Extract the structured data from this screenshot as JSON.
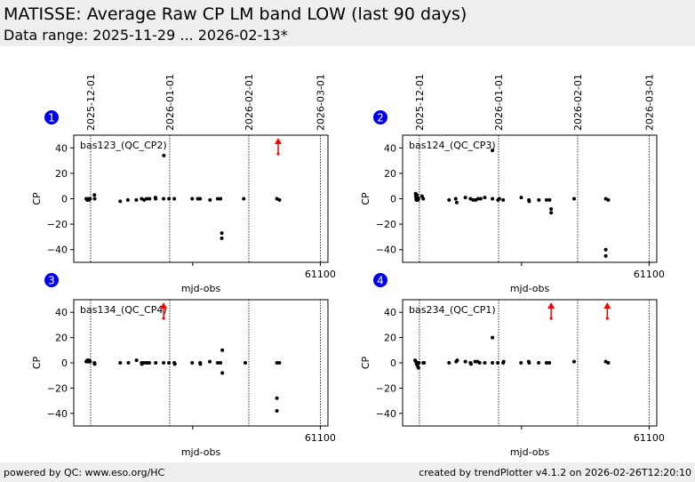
{
  "header": {
    "title": "MATISSE: Average Raw CP LM band LOW (last 90 days)",
    "subtitle": "Data range: 2025-11-29 ... 2026-02-13*"
  },
  "footer": {
    "left": "powered by QC: www.eso.org/HC",
    "right": "created by trendPlotter v4.1.2 on 2026-02-26T12:20:10"
  },
  "colors": {
    "badge": "#0000ee",
    "points": "#000000",
    "outlier_arrow": "#ff0000",
    "background_band": "#eeeeee"
  },
  "chart_data": [
    {
      "type": "scatter",
      "panel": 1,
      "label": "bas123_(QC_CP2)",
      "xlabel": "mjd-obs",
      "ylabel": "CP",
      "xlim": [
        61003.4,
        61103
      ],
      "ylim": [
        -50,
        50
      ],
      "yticks": [
        -40,
        -20,
        0,
        20,
        40
      ],
      "xticks": [
        61050,
        61100
      ],
      "xtick_labels": [
        "",
        "61100"
      ],
      "date_markers": [
        {
          "mjd": 61010,
          "label": "2025-12-01"
        },
        {
          "mjd": 61041,
          "label": "2026-01-01"
        },
        {
          "mjd": 61072,
          "label": "2026-02-01"
        },
        {
          "mjd": 61100,
          "label": "2026-03-01"
        }
      ],
      "points": [
        [
          61008.3,
          0
        ],
        [
          61008.7,
          -1
        ],
        [
          61009.0,
          0
        ],
        [
          61009.4,
          -1
        ],
        [
          61009.8,
          0
        ],
        [
          61011.5,
          3
        ],
        [
          61011.6,
          0
        ],
        [
          61021.6,
          -2
        ],
        [
          61024.6,
          -1
        ],
        [
          61027.9,
          -1
        ],
        [
          61030.0,
          0
        ],
        [
          61031.0,
          -1
        ],
        [
          61032.0,
          0
        ],
        [
          61033.1,
          0
        ],
        [
          61035.4,
          1
        ],
        [
          61035.5,
          0
        ],
        [
          61038.7,
          34
        ],
        [
          61038.6,
          0
        ],
        [
          61040.7,
          0
        ],
        [
          61042.8,
          0
        ],
        [
          61049.8,
          0
        ],
        [
          61052.9,
          0
        ],
        [
          61056.8,
          -1
        ],
        [
          61059.8,
          0
        ],
        [
          61060.9,
          0
        ],
        [
          61052.0,
          0
        ],
        [
          61061.4,
          -27
        ],
        [
          61061.4,
          -31
        ],
        [
          61070.0,
          0
        ],
        [
          61083.0,
          0
        ],
        [
          61084.0,
          -1
        ]
      ],
      "outliers_above": [
        61083.5
      ]
    },
    {
      "type": "scatter",
      "panel": 2,
      "label": "bas124_(QC_CP3)",
      "xlabel": "mjd-obs",
      "ylabel": "CP",
      "xlim": [
        61003.4,
        61103
      ],
      "ylim": [
        -50,
        50
      ],
      "yticks": [
        -40,
        -20,
        0,
        20,
        40
      ],
      "xticks": [
        61050,
        61100
      ],
      "xtick_labels": [
        "",
        "61100"
      ],
      "date_markers": [
        {
          "mjd": 61010,
          "label": "2025-12-01"
        },
        {
          "mjd": 61041,
          "label": "2026-01-01"
        },
        {
          "mjd": 61072,
          "label": "2026-02-01"
        },
        {
          "mjd": 61100,
          "label": "2026-03-01"
        }
      ],
      "points": [
        [
          61008.5,
          4
        ],
        [
          61008.6,
          2
        ],
        [
          61008.7,
          0
        ],
        [
          61008.8,
          -1
        ],
        [
          61009.0,
          3
        ],
        [
          61009.2,
          1
        ],
        [
          61009.4,
          -1
        ],
        [
          61009.6,
          0
        ],
        [
          61011.0,
          2
        ],
        [
          61011.5,
          0
        ],
        [
          61021.6,
          -1
        ],
        [
          61024.2,
          0
        ],
        [
          61024.6,
          -3
        ],
        [
          61028.0,
          1
        ],
        [
          61030.0,
          0
        ],
        [
          61031.0,
          -1
        ],
        [
          61032.0,
          -1
        ],
        [
          61033.0,
          0
        ],
        [
          61034.0,
          0
        ],
        [
          61035.6,
          1
        ],
        [
          61038.6,
          38
        ],
        [
          61038.6,
          0
        ],
        [
          61040.8,
          -1
        ],
        [
          61042.8,
          -1
        ],
        [
          61041.3,
          0
        ],
        [
          61049.9,
          1
        ],
        [
          61052.9,
          -1
        ],
        [
          61053.0,
          -2
        ],
        [
          61056.8,
          -1
        ],
        [
          61059.8,
          -1
        ],
        [
          61061.0,
          -1
        ],
        [
          61061.6,
          -8
        ],
        [
          61061.6,
          -11
        ],
        [
          61070.6,
          0
        ],
        [
          61083.0,
          0
        ],
        [
          61084.0,
          -1
        ],
        [
          61083.0,
          -40
        ],
        [
          61083.0,
          -45
        ]
      ],
      "outliers_above": []
    },
    {
      "type": "scatter",
      "panel": 3,
      "label": "bas134_(QC_CP4)",
      "xlabel": "mjd-obs",
      "ylabel": "CP",
      "xlim": [
        61003.4,
        61103
      ],
      "ylim": [
        -50,
        50
      ],
      "yticks": [
        -40,
        -20,
        0,
        20,
        40
      ],
      "xticks": [
        61050,
        61100
      ],
      "xtick_labels": [
        "",
        "61100"
      ],
      "date_markers": [
        {
          "mjd": 61010,
          "label": "2025-12-01"
        },
        {
          "mjd": 61041,
          "label": "2026-01-01"
        },
        {
          "mjd": 61072,
          "label": "2026-02-01"
        },
        {
          "mjd": 61100,
          "label": "2026-03-01"
        }
      ],
      "points": [
        [
          61008.3,
          1
        ],
        [
          61008.7,
          2
        ],
        [
          61009.0,
          1
        ],
        [
          61009.4,
          2
        ],
        [
          61009.8,
          1
        ],
        [
          61011.5,
          0
        ],
        [
          61011.6,
          -1
        ],
        [
          61021.6,
          0
        ],
        [
          61024.8,
          0
        ],
        [
          61028.0,
          2
        ],
        [
          61030.0,
          0
        ],
        [
          61030.1,
          -1
        ],
        [
          61031.0,
          0
        ],
        [
          61032.0,
          0
        ],
        [
          61033.0,
          0
        ],
        [
          61035.5,
          0
        ],
        [
          61038.6,
          0
        ],
        [
          61040.7,
          0
        ],
        [
          61042.8,
          0
        ],
        [
          61043.0,
          -1
        ],
        [
          61049.8,
          0
        ],
        [
          61052.9,
          0
        ],
        [
          61053.0,
          -1
        ],
        [
          61056.7,
          1
        ],
        [
          61059.8,
          0
        ],
        [
          61060.9,
          0
        ],
        [
          61061.6,
          10
        ],
        [
          61061.6,
          -8
        ],
        [
          61070.6,
          0
        ],
        [
          61083.0,
          0
        ],
        [
          61084.0,
          0
        ],
        [
          61083.0,
          -28
        ],
        [
          61083.0,
          -38
        ]
      ],
      "outliers_above": [
        61038.6
      ]
    },
    {
      "type": "scatter",
      "panel": 4,
      "label": "bas234_(QC_CP1)",
      "xlabel": "mjd-obs",
      "ylabel": "CP",
      "xlim": [
        61003.4,
        61103
      ],
      "ylim": [
        -50,
        50
      ],
      "yticks": [
        -40,
        -20,
        0,
        20,
        40
      ],
      "xticks": [
        61050,
        61100
      ],
      "xtick_labels": [
        "",
        "61100"
      ],
      "date_markers": [
        {
          "mjd": 61010,
          "label": "2025-12-01"
        },
        {
          "mjd": 61041,
          "label": "2026-01-01"
        },
        {
          "mjd": 61072,
          "label": "2026-02-01"
        },
        {
          "mjd": 61100,
          "label": "2026-03-01"
        }
      ],
      "points": [
        [
          61008.3,
          2
        ],
        [
          61008.6,
          1
        ],
        [
          61008.9,
          -1
        ],
        [
          61009.1,
          0
        ],
        [
          61009.4,
          -3
        ],
        [
          61009.6,
          -4
        ],
        [
          61009.8,
          0
        ],
        [
          61011.5,
          0
        ],
        [
          61011.8,
          0
        ],
        [
          61021.6,
          0
        ],
        [
          61024.4,
          1
        ],
        [
          61024.8,
          2
        ],
        [
          61028.0,
          1
        ],
        [
          61030.0,
          0
        ],
        [
          61030.2,
          -1
        ],
        [
          61031.8,
          1
        ],
        [
          61032.8,
          1
        ],
        [
          61033.6,
          0
        ],
        [
          61035.6,
          0
        ],
        [
          61038.6,
          20
        ],
        [
          61038.6,
          0
        ],
        [
          61040.7,
          0
        ],
        [
          61042.8,
          0
        ],
        [
          61043.0,
          1
        ],
        [
          61049.8,
          0
        ],
        [
          61052.8,
          1
        ],
        [
          61053.0,
          0
        ],
        [
          61056.7,
          0
        ],
        [
          61059.8,
          0
        ],
        [
          61060.9,
          0
        ],
        [
          61070.6,
          1
        ],
        [
          61083.0,
          1
        ],
        [
          61084.0,
          0
        ]
      ],
      "outliers_above": [
        61061.6,
        61083.6
      ]
    }
  ]
}
